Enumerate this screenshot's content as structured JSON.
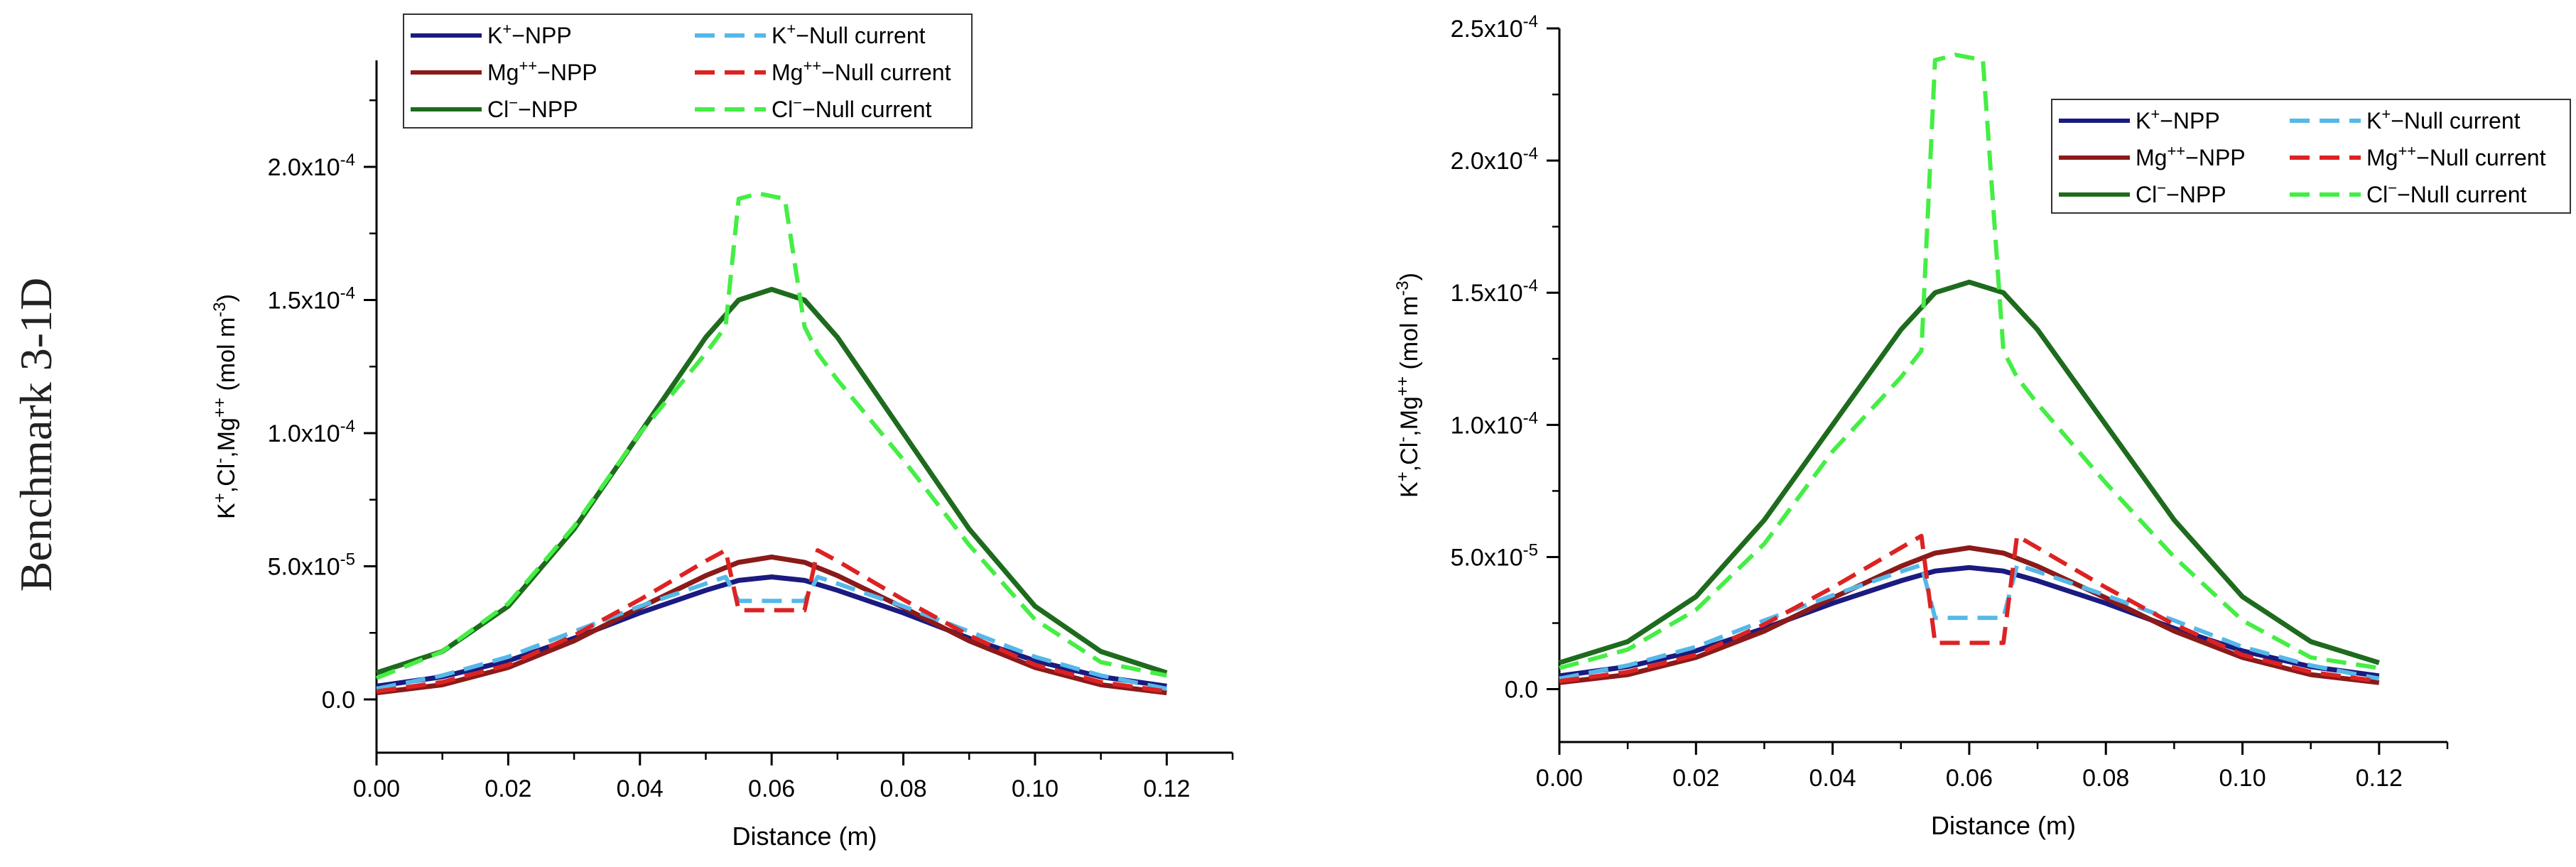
{
  "figure": {
    "side_label": "Benchmark 3-1D"
  },
  "chart_data": [
    {
      "type": "line",
      "panel": "left",
      "title": "",
      "xlabel": "Distance (m)",
      "ylabel": {
        "base": [
          "K",
          "+",
          ",Cl",
          "-",
          ",Mg",
          "++",
          " (mol m",
          "-3",
          ")"
        ]
      },
      "xlim": [
        0,
        0.13
      ],
      "ylim": [
        -2e-05,
        0.00024
      ],
      "xticks": [
        0.0,
        0.02,
        0.04,
        0.06,
        0.08,
        0.1,
        0.12
      ],
      "xtick_labels": [
        "0.00",
        "0.02",
        "0.04",
        "0.06",
        "0.08",
        "0.10",
        "0.12"
      ],
      "yticks": [
        0,
        5e-05,
        0.0001,
        0.00015,
        0.0002
      ],
      "ytick_labels": [
        {
          "mant": "0.0",
          "exp": ""
        },
        {
          "mant": "5.0x10",
          "exp": "-5"
        },
        {
          "mant": "1.0x10",
          "exp": "-4"
        },
        {
          "mant": "1.5x10",
          "exp": "-4"
        },
        {
          "mant": "2.0x10",
          "exp": "-4"
        }
      ],
      "legend": {
        "placement": "top"
      },
      "series": [
        {
          "name": "K+−NPP",
          "label": {
            "ion": "K",
            "sup": "+",
            "rest": "−NPP"
          },
          "color": "#1a1a80",
          "dash": "solid",
          "x": [
            0,
            0.01,
            0.02,
            0.03,
            0.04,
            0.05,
            0.055,
            0.06,
            0.065,
            0.07,
            0.08,
            0.09,
            0.1,
            0.11,
            0.12
          ],
          "values": [
            5e-06,
            8.5e-06,
            1.45e-05,
            2.3e-05,
            3.25e-05,
            4.1e-05,
            4.47e-05,
            4.6e-05,
            4.47e-05,
            4.1e-05,
            3.25e-05,
            2.3e-05,
            1.45e-05,
            8.5e-06,
            5e-06
          ]
        },
        {
          "name": "Mg++−NPP",
          "label": {
            "ion": "Mg",
            "sup": "++",
            "rest": "−NPP"
          },
          "color": "#8b1a1a",
          "dash": "solid",
          "x": [
            0,
            0.01,
            0.02,
            0.03,
            0.04,
            0.05,
            0.055,
            0.06,
            0.065,
            0.07,
            0.08,
            0.09,
            0.1,
            0.11,
            0.12
          ],
          "values": [
            2.5e-06,
            5.5e-06,
            1.2e-05,
            2.2e-05,
            3.45e-05,
            4.65e-05,
            5.15e-05,
            5.35e-05,
            5.15e-05,
            4.65e-05,
            3.45e-05,
            2.2e-05,
            1.2e-05,
            5.5e-06,
            2.5e-06
          ]
        },
        {
          "name": "Cl−−NPP",
          "label": {
            "ion": "Cl",
            "sup": "−",
            "rest": "−NPP"
          },
          "color": "#1e6b1e",
          "dash": "solid",
          "x": [
            0,
            0.01,
            0.02,
            0.03,
            0.04,
            0.05,
            0.055,
            0.06,
            0.065,
            0.07,
            0.08,
            0.09,
            0.1,
            0.11,
            0.12
          ],
          "values": [
            1e-05,
            1.8e-05,
            3.5e-05,
            6.4e-05,
            0.0001,
            0.000136,
            0.00015,
            0.000154,
            0.00015,
            0.000136,
            0.0001,
            6.4e-05,
            3.5e-05,
            1.8e-05,
            1e-05
          ]
        },
        {
          "name": "K+−Null current",
          "label": {
            "ion": "K",
            "sup": "+",
            "rest": "−Null current"
          },
          "color": "#55b8e8",
          "dash": "dashed",
          "x": [
            0,
            0.01,
            0.02,
            0.03,
            0.04,
            0.05,
            0.053,
            0.055,
            0.065,
            0.067,
            0.07,
            0.08,
            0.09,
            0.1,
            0.11,
            0.12
          ],
          "values": [
            4e-06,
            9e-06,
            1.6e-05,
            2.55e-05,
            3.5e-05,
            4.35e-05,
            4.6e-05,
            3.7e-05,
            3.7e-05,
            4.6e-05,
            4.35e-05,
            3.5e-05,
            2.55e-05,
            1.6e-05,
            9e-06,
            4e-06
          ]
        },
        {
          "name": "Mg++−Null current",
          "label": {
            "ion": "Mg",
            "sup": "++",
            "rest": "−Null current"
          },
          "color": "#dd2222",
          "dash": "dashed",
          "x": [
            0,
            0.01,
            0.02,
            0.03,
            0.04,
            0.05,
            0.053,
            0.055,
            0.065,
            0.067,
            0.07,
            0.08,
            0.09,
            0.1,
            0.11,
            0.12
          ],
          "values": [
            3e-06,
            6.5e-06,
            1.3e-05,
            2.4e-05,
            3.75e-05,
            5.2e-05,
            5.6e-05,
            3.35e-05,
            3.35e-05,
            5.6e-05,
            5.2e-05,
            3.75e-05,
            2.4e-05,
            1.3e-05,
            6.5e-06,
            3e-06
          ]
        },
        {
          "name": "Cl−−Null current",
          "label": {
            "ion": "Cl",
            "sup": "−",
            "rest": "−Null current"
          },
          "color": "#44ee44",
          "dash": "dashed",
          "x": [
            0,
            0.01,
            0.02,
            0.03,
            0.04,
            0.05,
            0.053,
            0.055,
            0.058,
            0.062,
            0.065,
            0.067,
            0.07,
            0.08,
            0.09,
            0.1,
            0.11,
            0.12
          ],
          "values": [
            8e-06,
            1.8e-05,
            3.6e-05,
            6.5e-05,
            0.0001,
            0.00013,
            0.00014,
            0.000188,
            0.00019,
            0.000188,
            0.00014,
            0.00013,
            0.00012,
            9e-05,
            5.8e-05,
            3e-05,
            1.4e-05,
            9e-06
          ]
        }
      ]
    },
    {
      "type": "line",
      "panel": "right",
      "title": "",
      "xlabel": "Distance (m)",
      "ylabel": {
        "base": [
          "K",
          "+",
          ",Cl",
          "-",
          ",Mg",
          "++",
          " (mol m",
          "-3",
          ")"
        ]
      },
      "xlim": [
        0,
        0.13
      ],
      "ylim": [
        -2e-05,
        0.00025
      ],
      "xticks": [
        0.0,
        0.02,
        0.04,
        0.06,
        0.08,
        0.1,
        0.12
      ],
      "xtick_labels": [
        "0.00",
        "0.02",
        "0.04",
        "0.06",
        "0.08",
        "0.10",
        "0.12"
      ],
      "yticks": [
        0,
        5e-05,
        0.0001,
        0.00015,
        0.0002,
        0.00025
      ],
      "ytick_labels": [
        {
          "mant": "0.0",
          "exp": ""
        },
        {
          "mant": "5.0x10",
          "exp": "-5"
        },
        {
          "mant": "1.0x10",
          "exp": "-4"
        },
        {
          "mant": "1.5x10",
          "exp": "-4"
        },
        {
          "mant": "2.0x10",
          "exp": "-4"
        },
        {
          "mant": "2.5x10",
          "exp": "-4"
        }
      ],
      "legend": {
        "placement": "top-right"
      },
      "series": [
        {
          "name": "K+−NPP",
          "label": {
            "ion": "K",
            "sup": "+",
            "rest": "−NPP"
          },
          "color": "#1a1a80",
          "dash": "solid",
          "x": [
            0,
            0.01,
            0.02,
            0.03,
            0.04,
            0.05,
            0.055,
            0.06,
            0.065,
            0.07,
            0.08,
            0.09,
            0.1,
            0.11,
            0.12
          ],
          "values": [
            5e-06,
            8.5e-06,
            1.45e-05,
            2.3e-05,
            3.25e-05,
            4.1e-05,
            4.47e-05,
            4.6e-05,
            4.47e-05,
            4.1e-05,
            3.25e-05,
            2.3e-05,
            1.45e-05,
            8.5e-06,
            5e-06
          ]
        },
        {
          "name": "Mg++−NPP",
          "label": {
            "ion": "Mg",
            "sup": "++",
            "rest": "−NPP"
          },
          "color": "#8b1a1a",
          "dash": "solid",
          "x": [
            0,
            0.01,
            0.02,
            0.03,
            0.04,
            0.05,
            0.055,
            0.06,
            0.065,
            0.07,
            0.08,
            0.09,
            0.1,
            0.11,
            0.12
          ],
          "values": [
            2.5e-06,
            5.5e-06,
            1.2e-05,
            2.2e-05,
            3.45e-05,
            4.65e-05,
            5.15e-05,
            5.35e-05,
            5.15e-05,
            4.65e-05,
            3.45e-05,
            2.2e-05,
            1.2e-05,
            5.5e-06,
            2.5e-06
          ]
        },
        {
          "name": "Cl−−NPP",
          "label": {
            "ion": "Cl",
            "sup": "−",
            "rest": "−NPP"
          },
          "color": "#1e6b1e",
          "dash": "solid",
          "x": [
            0,
            0.01,
            0.02,
            0.03,
            0.04,
            0.05,
            0.055,
            0.06,
            0.065,
            0.07,
            0.08,
            0.09,
            0.1,
            0.11,
            0.12
          ],
          "values": [
            1e-05,
            1.8e-05,
            3.5e-05,
            6.4e-05,
            0.0001,
            0.000136,
            0.00015,
            0.000154,
            0.00015,
            0.000136,
            0.0001,
            6.4e-05,
            3.5e-05,
            1.8e-05,
            1e-05
          ]
        },
        {
          "name": "K+−Null current",
          "label": {
            "ion": "K",
            "sup": "+",
            "rest": "−Null current"
          },
          "color": "#55b8e8",
          "dash": "dashed",
          "x": [
            0,
            0.01,
            0.02,
            0.03,
            0.04,
            0.05,
            0.053,
            0.055,
            0.065,
            0.067,
            0.07,
            0.08,
            0.09,
            0.1,
            0.11,
            0.12
          ],
          "values": [
            4e-06,
            9e-06,
            1.6e-05,
            2.6e-05,
            3.55e-05,
            4.45e-05,
            4.7e-05,
            2.7e-05,
            2.7e-05,
            4.7e-05,
            4.45e-05,
            3.55e-05,
            2.6e-05,
            1.6e-05,
            9e-06,
            4e-06
          ]
        },
        {
          "name": "Mg++−Null current",
          "label": {
            "ion": "Mg",
            "sup": "++",
            "rest": "−Null current"
          },
          "color": "#dd2222",
          "dash": "dashed",
          "x": [
            0,
            0.01,
            0.02,
            0.03,
            0.04,
            0.05,
            0.053,
            0.055,
            0.065,
            0.067,
            0.07,
            0.08,
            0.09,
            0.1,
            0.11,
            0.12
          ],
          "values": [
            3e-06,
            6.5e-06,
            1.3e-05,
            2.45e-05,
            3.85e-05,
            5.35e-05,
            5.8e-05,
            1.75e-05,
            1.75e-05,
            5.8e-05,
            5.35e-05,
            3.85e-05,
            2.45e-05,
            1.3e-05,
            6.5e-06,
            3e-06
          ]
        },
        {
          "name": "Cl−−Null current",
          "label": {
            "ion": "Cl",
            "sup": "−",
            "rest": "−Null current"
          },
          "color": "#44ee44",
          "dash": "dashed",
          "x": [
            0,
            0.01,
            0.02,
            0.03,
            0.04,
            0.05,
            0.053,
            0.055,
            0.058,
            0.062,
            0.065,
            0.067,
            0.07,
            0.08,
            0.09,
            0.1,
            0.11,
            0.12
          ],
          "values": [
            8e-06,
            1.5e-05,
            3e-05,
            5.5e-05,
            9e-05,
            0.000118,
            0.000128,
            0.000238,
            0.00024,
            0.000238,
            0.000128,
            0.000118,
            0.000108,
            7.8e-05,
            5e-05,
            2.6e-05,
            1.2e-05,
            8e-06
          ]
        }
      ]
    }
  ]
}
